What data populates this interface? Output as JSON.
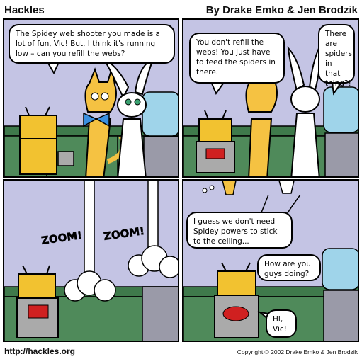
{
  "header": {
    "title": "Hackles",
    "byline": "By Drake Emko & Jen Brodzik"
  },
  "footer": {
    "url": "http://hackles.org",
    "copyright": "Copyright © 2002 Drake Emko & Jen Brodzik"
  },
  "panels": [
    {
      "bubbles": [
        "The Spidey web shooter you made is a lot of fun, Vic! But, I think it's running low – can you refill the webs?"
      ]
    },
    {
      "bubbles": [
        "You don't refill the webs! You just have to feed the spiders in there.",
        "There are spiders in that thing?!"
      ]
    },
    {
      "sfx": [
        "ZOOM!",
        "ZOOM!"
      ]
    },
    {
      "bubbles": [
        "I guess we don't need Spidey powers to stick to the ceiling...",
        "How are you guys doing?",
        "Hi, Vic!"
      ]
    }
  ],
  "colors": {
    "wall": "#c4c4e4",
    "counter": "#4f8a5a",
    "cat": "#f5c242",
    "robot": "#f2c230",
    "water_jug": "#9fd4ea"
  }
}
